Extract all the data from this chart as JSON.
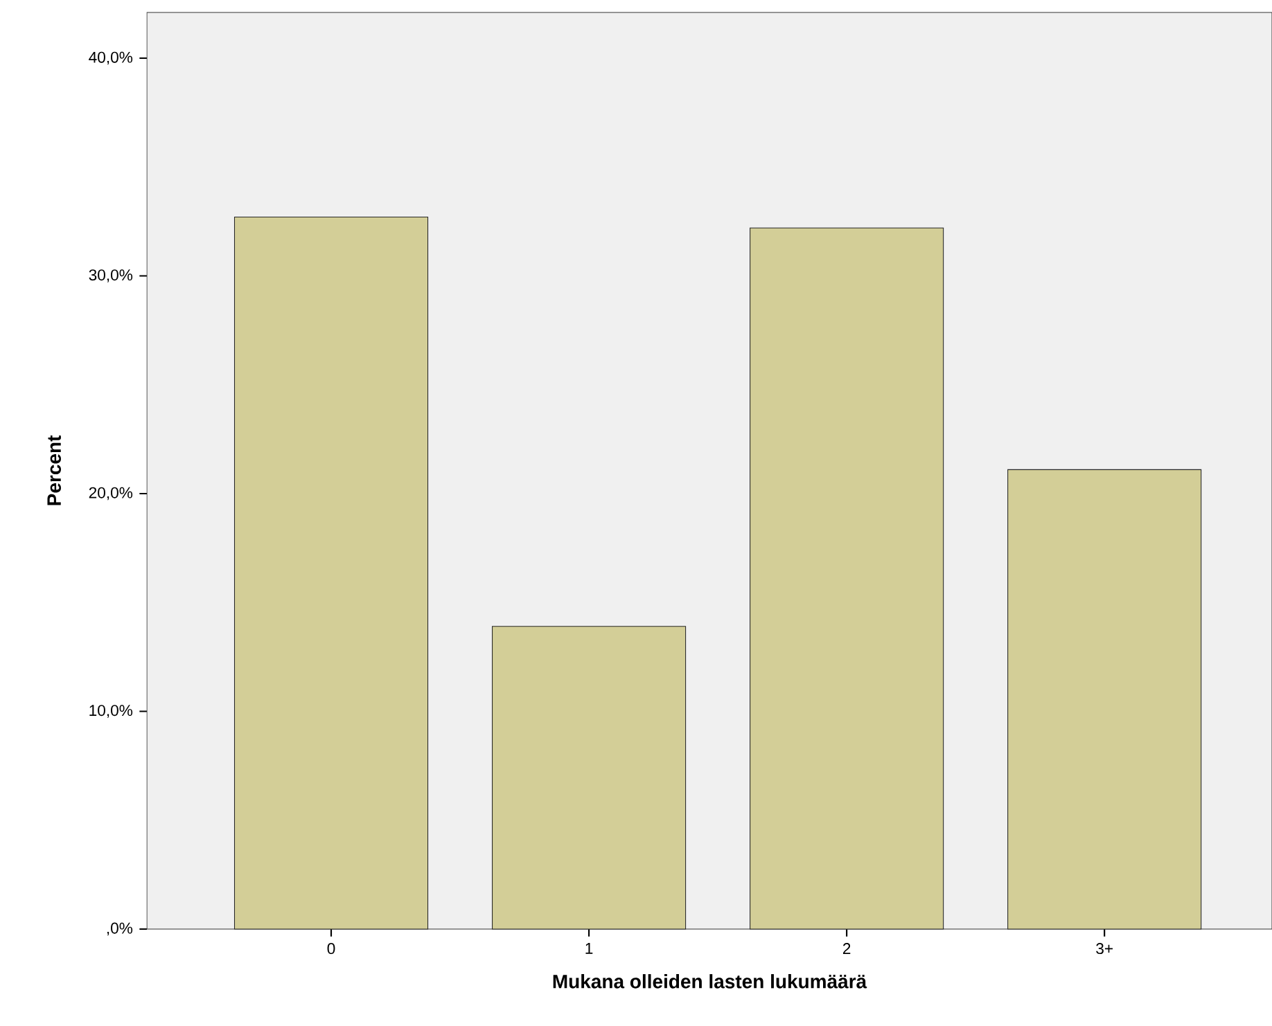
{
  "chart_data": {
    "type": "bar",
    "xlabel": "Mukana olleiden lasten lukumäärä",
    "ylabel": "Percent",
    "categories": [
      "0",
      "1",
      "2",
      "3+"
    ],
    "values": [
      32.7,
      13.9,
      32.2,
      21.1
    ],
    "color": "#d3ce97",
    "ylim": [
      0,
      42.1
    ],
    "yticks": [
      {
        "value": 0,
        "label": ",0%"
      },
      {
        "value": 10,
        "label": "10,0%"
      },
      {
        "value": 20,
        "label": "20,0%"
      },
      {
        "value": 30,
        "label": "30,0%"
      },
      {
        "value": 40,
        "label": "40,0%"
      }
    ],
    "grid": false
  }
}
